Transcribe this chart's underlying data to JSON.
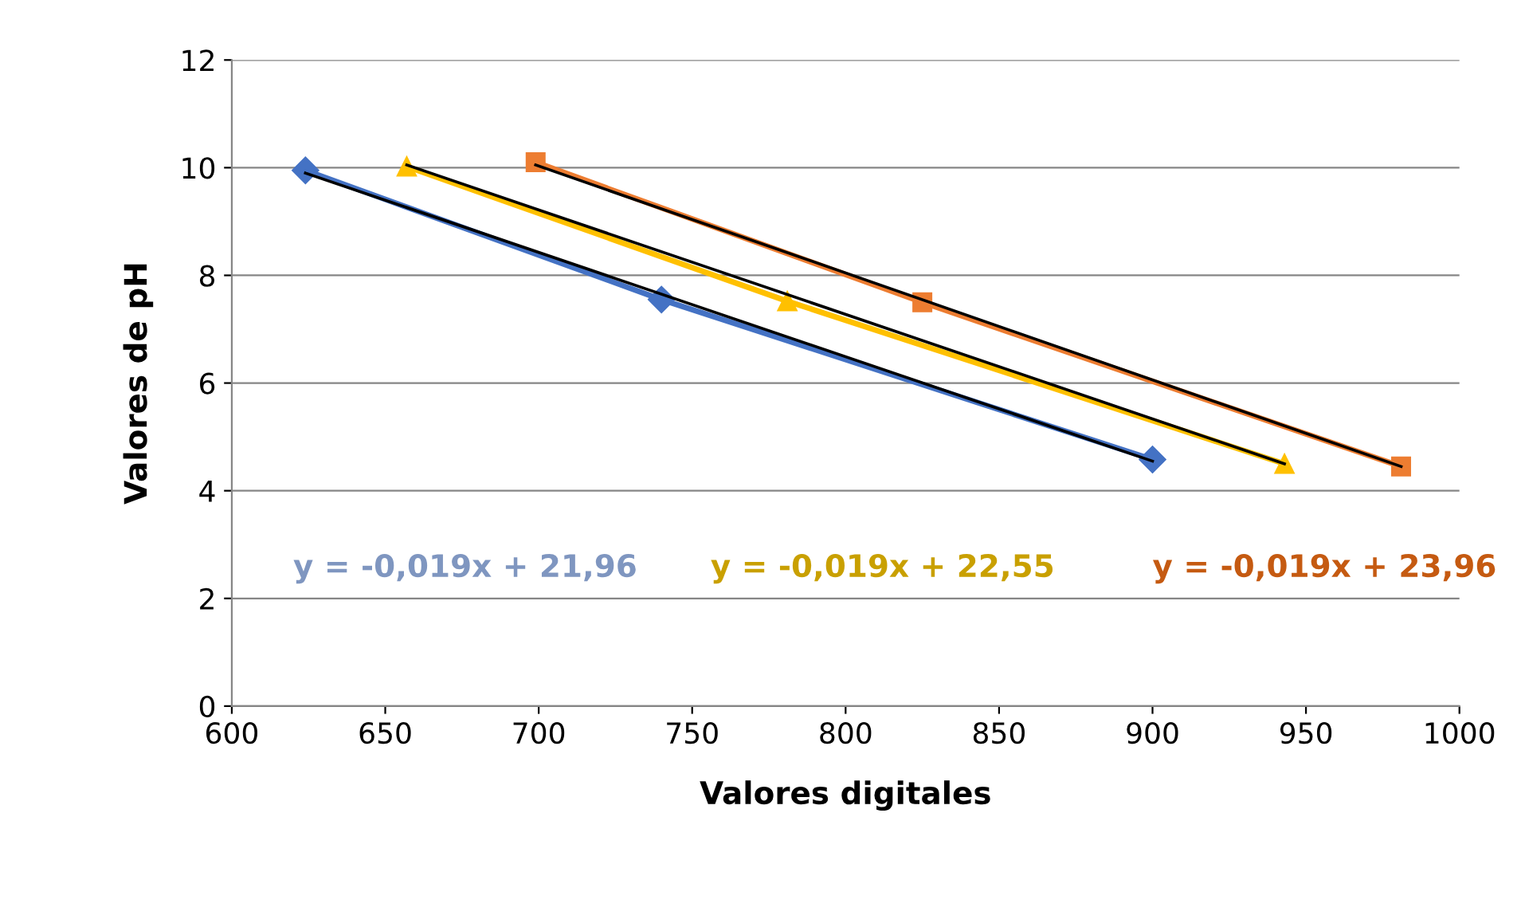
{
  "chart_data": {
    "type": "line",
    "xlabel": "Valores digitales",
    "ylabel": "Valores de pH",
    "xlim": [
      600,
      1000
    ],
    "xticks": [
      600,
      650,
      700,
      750,
      800,
      850,
      900,
      950,
      1000
    ],
    "ylim": [
      0,
      12
    ],
    "yticks": [
      0,
      2,
      4,
      6,
      8,
      10,
      12
    ],
    "grid": "y",
    "legend": false,
    "series": [
      {
        "color": "#4472c4",
        "marker": "diamond",
        "x": [
          624,
          740,
          900
        ],
        "values": [
          9.95,
          7.55,
          4.58
        ]
      },
      {
        "color": "#ffc000",
        "marker": "triangle",
        "x": [
          657,
          781,
          943
        ],
        "values": [
          10.02,
          7.52,
          4.5
        ]
      },
      {
        "color": "#ed7d31",
        "marker": "square",
        "x": [
          699,
          825,
          981
        ],
        "values": [
          10.1,
          7.5,
          4.45
        ]
      },
      {
        "type": "line",
        "color": "#000000",
        "marker": "none",
        "x": [
          624,
          900
        ],
        "values": [
          9.9,
          4.55
        ]
      },
      {
        "type": "line",
        "color": "#000000",
        "marker": "none",
        "x": [
          657,
          943
        ],
        "values": [
          10.05,
          4.5
        ]
      },
      {
        "type": "line",
        "color": "#000000",
        "marker": "none",
        "x": [
          699,
          981
        ],
        "values": [
          10.05,
          4.45
        ]
      }
    ],
    "annotations": [
      "y = -0,019x + 21,96",
      "y = -0,019x + 22,55",
      "y = -0,019x + 23,96"
    ]
  }
}
